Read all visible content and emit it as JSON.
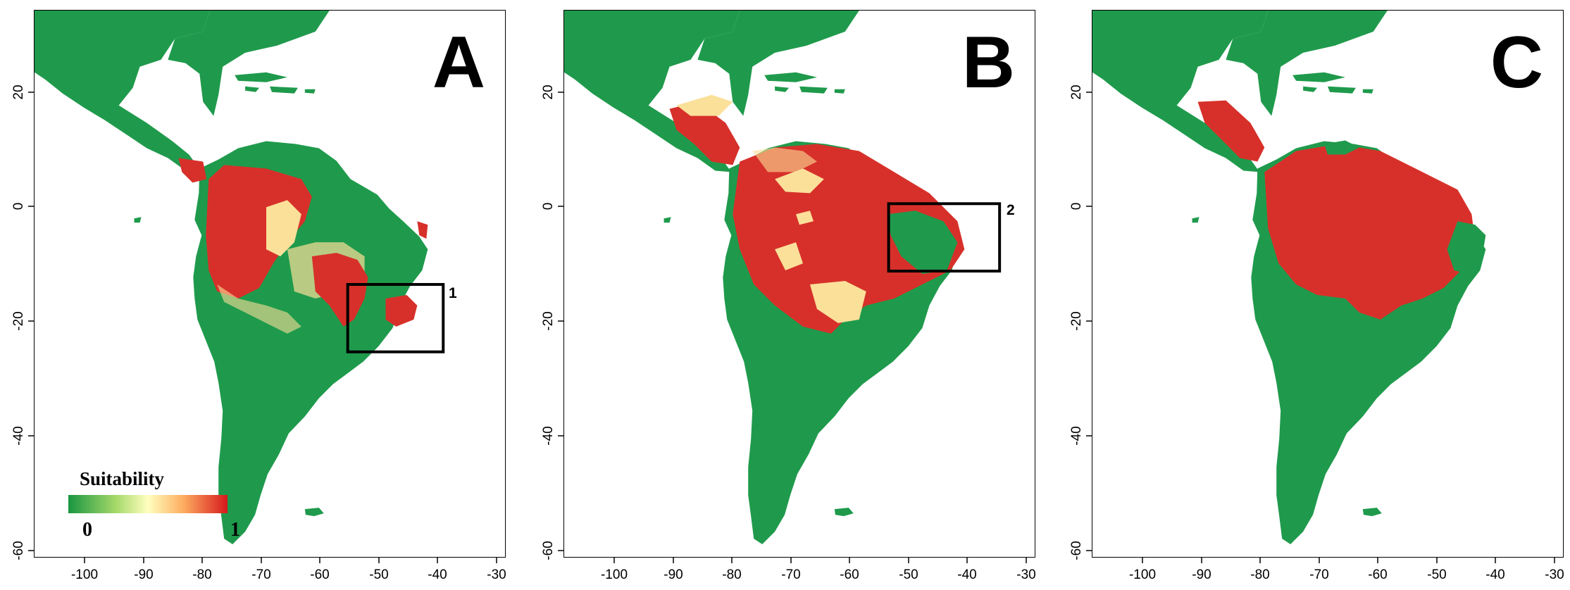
{
  "panels": [
    {
      "id": "A",
      "letter": "A",
      "box_label": "1"
    },
    {
      "id": "B",
      "letter": "B",
      "box_label": "2"
    },
    {
      "id": "C",
      "letter": "C",
      "box_label": ""
    }
  ],
  "axes": {
    "y_ticks": [
      "20",
      "0",
      "-20",
      "-40",
      "-60"
    ],
    "x_ticks": [
      "-100",
      "-90",
      "-80",
      "-70",
      "-60",
      "-50",
      "-40",
      "-30"
    ]
  },
  "legend": {
    "title": "Suitability",
    "min": "0",
    "max": "1"
  },
  "colors": {
    "low": "#1a9641",
    "mid": "#ffffbf",
    "high": "#d7191c",
    "land": "#1f9a4c",
    "red": "#d7302a",
    "yellow": "#fbe09a"
  }
}
